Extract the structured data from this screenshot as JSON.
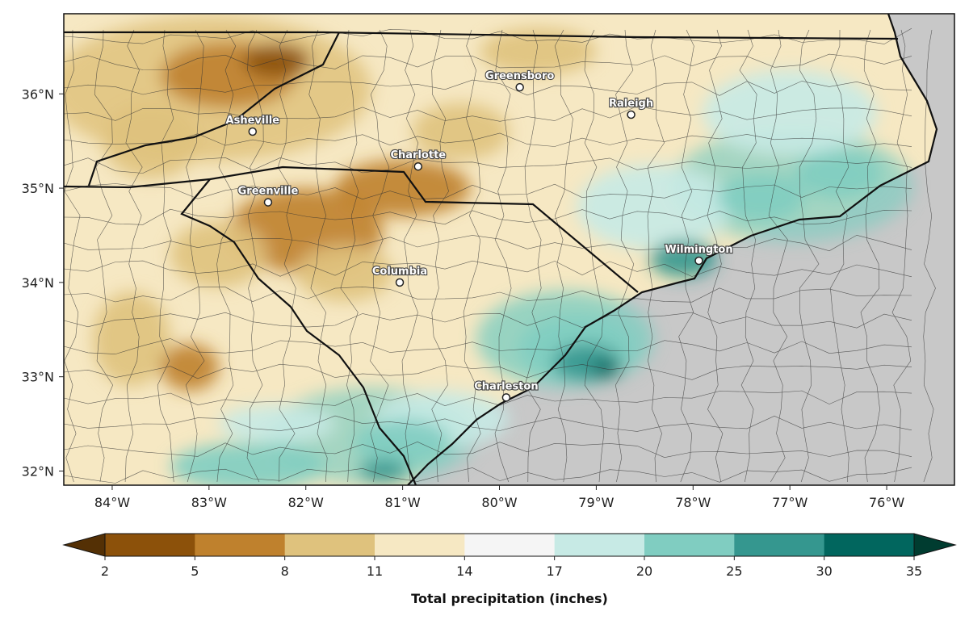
{
  "map": {
    "lon_range": [
      -84.5,
      -75.3
    ],
    "lat_range": [
      31.85,
      36.85
    ],
    "ocean_color": "#c8c8c8",
    "border_color": "#111111",
    "lon_ticks": [
      {
        "value": -84,
        "label": "84°W"
      },
      {
        "value": -83,
        "label": "83°W"
      },
      {
        "value": -82,
        "label": "82°W"
      },
      {
        "value": -81,
        "label": "81°W"
      },
      {
        "value": -80,
        "label": "80°W"
      },
      {
        "value": -79,
        "label": "79°W"
      },
      {
        "value": -78,
        "label": "78°W"
      },
      {
        "value": -77,
        "label": "77°W"
      },
      {
        "value": -76,
        "label": "76°W"
      }
    ],
    "lat_ticks": [
      {
        "value": 32,
        "label": "32°N"
      },
      {
        "value": 33,
        "label": "33°N"
      },
      {
        "value": 34,
        "label": "34°N"
      },
      {
        "value": 35,
        "label": "35°N"
      },
      {
        "value": 36,
        "label": "36°N"
      }
    ],
    "cities": [
      {
        "name": "Greensboro",
        "lon": -79.79,
        "lat": 36.07
      },
      {
        "name": "Raleigh",
        "lon": -78.64,
        "lat": 35.78
      },
      {
        "name": "Asheville",
        "lon": -82.55,
        "lat": 35.6
      },
      {
        "name": "Charlotte",
        "lon": -80.84,
        "lat": 35.23
      },
      {
        "name": "Greenville",
        "lon": -82.39,
        "lat": 34.85
      },
      {
        "name": "Wilmington",
        "lon": -77.94,
        "lat": 34.23
      },
      {
        "name": "Columbia",
        "lon": -81.03,
        "lat": 34.0
      },
      {
        "name": "Charleston",
        "lon": -79.93,
        "lat": 32.78
      }
    ],
    "rain_patches": [
      {
        "lon": -82.8,
        "lat": 36.2,
        "rx": 0.7,
        "ry": 0.35,
        "color": "#bf812d"
      },
      {
        "lon": -82.3,
        "lat": 36.35,
        "rx": 0.35,
        "ry": 0.18,
        "color": "#8c510a"
      },
      {
        "lon": -83.6,
        "lat": 35.5,
        "rx": 0.5,
        "ry": 0.4,
        "color": "#dfc27d"
      },
      {
        "lon": -81.0,
        "lat": 35.0,
        "rx": 0.7,
        "ry": 0.3,
        "color": "#bf812d"
      },
      {
        "lon": -82.0,
        "lat": 34.55,
        "rx": 0.8,
        "ry": 0.45,
        "color": "#bf812d"
      },
      {
        "lon": -82.9,
        "lat": 34.3,
        "rx": 0.5,
        "ry": 0.35,
        "color": "#dfc27d"
      },
      {
        "lon": -83.8,
        "lat": 33.4,
        "rx": 0.4,
        "ry": 0.5,
        "color": "#dfc27d"
      },
      {
        "lon": -83.2,
        "lat": 33.1,
        "rx": 0.3,
        "ry": 0.25,
        "color": "#bf812d"
      },
      {
        "lon": -81.6,
        "lat": 34.1,
        "rx": 0.5,
        "ry": 0.3,
        "color": "#dfc27d"
      },
      {
        "lon": -80.4,
        "lat": 35.6,
        "rx": 0.5,
        "ry": 0.3,
        "color": "#dfc27d"
      },
      {
        "lon": -79.6,
        "lat": 36.45,
        "rx": 0.6,
        "ry": 0.25,
        "color": "#dfc27d"
      },
      {
        "lon": -78.4,
        "lat": 34.8,
        "rx": 0.8,
        "ry": 0.45,
        "color": "#c7eae5"
      },
      {
        "lon": -77.0,
        "lat": 35.8,
        "rx": 0.9,
        "ry": 0.45,
        "color": "#c7eae5"
      },
      {
        "lon": -76.5,
        "lat": 35.15,
        "rx": 0.45,
        "ry": 0.25,
        "color": "#80cdc1"
      },
      {
        "lon": -77.3,
        "lat": 34.9,
        "rx": 0.45,
        "ry": 0.25,
        "color": "#80cdc1"
      },
      {
        "lon": -78.1,
        "lat": 34.25,
        "rx": 0.35,
        "ry": 0.2,
        "color": "#35978f"
      },
      {
        "lon": -79.2,
        "lat": 33.3,
        "rx": 0.6,
        "ry": 0.35,
        "color": "#80cdc1"
      },
      {
        "lon": -79.1,
        "lat": 33.15,
        "rx": 0.35,
        "ry": 0.2,
        "color": "#35978f"
      },
      {
        "lon": -78.9,
        "lat": 33.08,
        "rx": 0.15,
        "ry": 0.1,
        "color": "#01665e"
      },
      {
        "lon": -80.6,
        "lat": 32.55,
        "rx": 0.7,
        "ry": 0.3,
        "color": "#c7eae5"
      },
      {
        "lon": -81.0,
        "lat": 32.3,
        "rx": 0.5,
        "ry": 0.25,
        "color": "#80cdc1"
      },
      {
        "lon": -81.2,
        "lat": 32.0,
        "rx": 0.25,
        "ry": 0.12,
        "color": "#35978f"
      },
      {
        "lon": -82.6,
        "lat": 32.05,
        "rx": 0.8,
        "ry": 0.25,
        "color": "#80cdc1"
      },
      {
        "lon": -82.3,
        "lat": 32.5,
        "rx": 0.6,
        "ry": 0.2,
        "color": "#c7eae5"
      }
    ]
  },
  "colorbar": {
    "title": "Total precipitation (inches)",
    "tick_labels": [
      "2",
      "5",
      "8",
      "11",
      "14",
      "17",
      "20",
      "25",
      "30",
      "35"
    ],
    "under_color": "#543005",
    "over_color": "#003c30",
    "colors": [
      "#8c510a",
      "#bf812d",
      "#dfc27d",
      "#f6e8c3",
      "#f5f5f5",
      "#c7eae5",
      "#80cdc1",
      "#35978f",
      "#01665e"
    ]
  }
}
